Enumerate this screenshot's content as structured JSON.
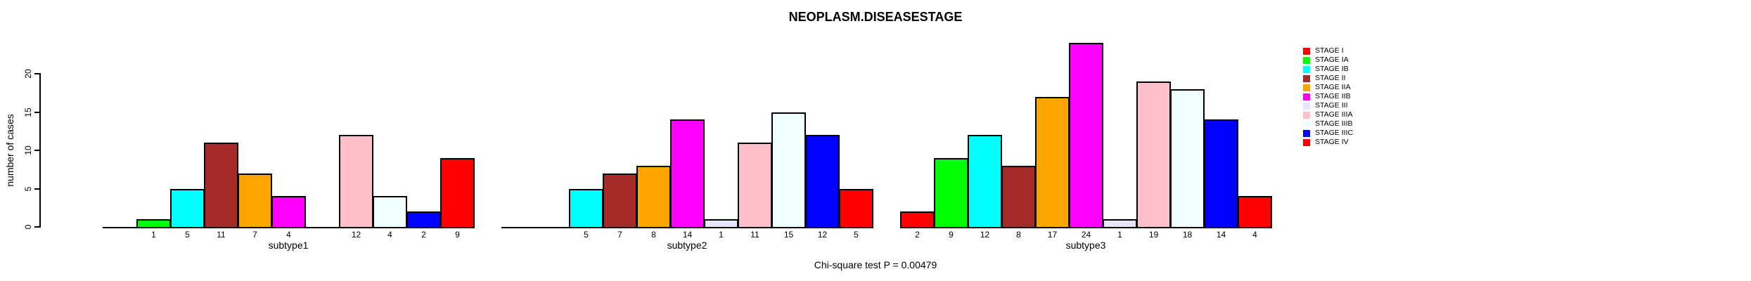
{
  "title": "NEOPLASM.DISEASESTAGE",
  "note": "Chi-square test P = 0.00479",
  "chart_data": {
    "type": "bar",
    "title": "NEOPLASM.DISEASESTAGE",
    "xlabel": "",
    "ylabel": "number of cases",
    "ylim": [
      0,
      24
    ],
    "yticks": [
      0,
      5,
      10,
      15,
      20
    ],
    "grid": false,
    "legend_position": "right",
    "bar_labels": "values shown under each bar; zero-value bars omitted",
    "categories": [
      "subtype1",
      "subtype2",
      "subtype3"
    ],
    "series": [
      {
        "name": "STAGE I",
        "color": "#FF0000",
        "values": [
          0,
          0,
          2
        ]
      },
      {
        "name": "STAGE IA",
        "color": "#00FF00",
        "values": [
          1,
          0,
          9
        ]
      },
      {
        "name": "STAGE IB",
        "color": "#00FFFF",
        "values": [
          5,
          5,
          12
        ]
      },
      {
        "name": "STAGE II",
        "color": "#A52A2A",
        "values": [
          11,
          7,
          8
        ]
      },
      {
        "name": "STAGE IIA",
        "color": "#FFA500",
        "values": [
          7,
          8,
          17
        ]
      },
      {
        "name": "STAGE IIB",
        "color": "#FF00FF",
        "values": [
          4,
          14,
          24
        ]
      },
      {
        "name": "STAGE III",
        "color": "#E6E6FA",
        "values": [
          0,
          1,
          1
        ]
      },
      {
        "name": "STAGE IIIA",
        "color": "#FFC0CB",
        "values": [
          12,
          11,
          19
        ]
      },
      {
        "name": "STAGE IIIB",
        "color": "#F0FFFF",
        "values": [
          4,
          15,
          18
        ]
      },
      {
        "name": "STAGE IIIC",
        "color": "#0000FF",
        "values": [
          2,
          12,
          14
        ]
      },
      {
        "name": "STAGE IV",
        "color": "#FF0000",
        "values": [
          9,
          5,
          4
        ]
      }
    ],
    "annotation": "Chi-square test P = 0.00479",
    "text_color": "#000000",
    "background_color": "#FFFFFF"
  }
}
